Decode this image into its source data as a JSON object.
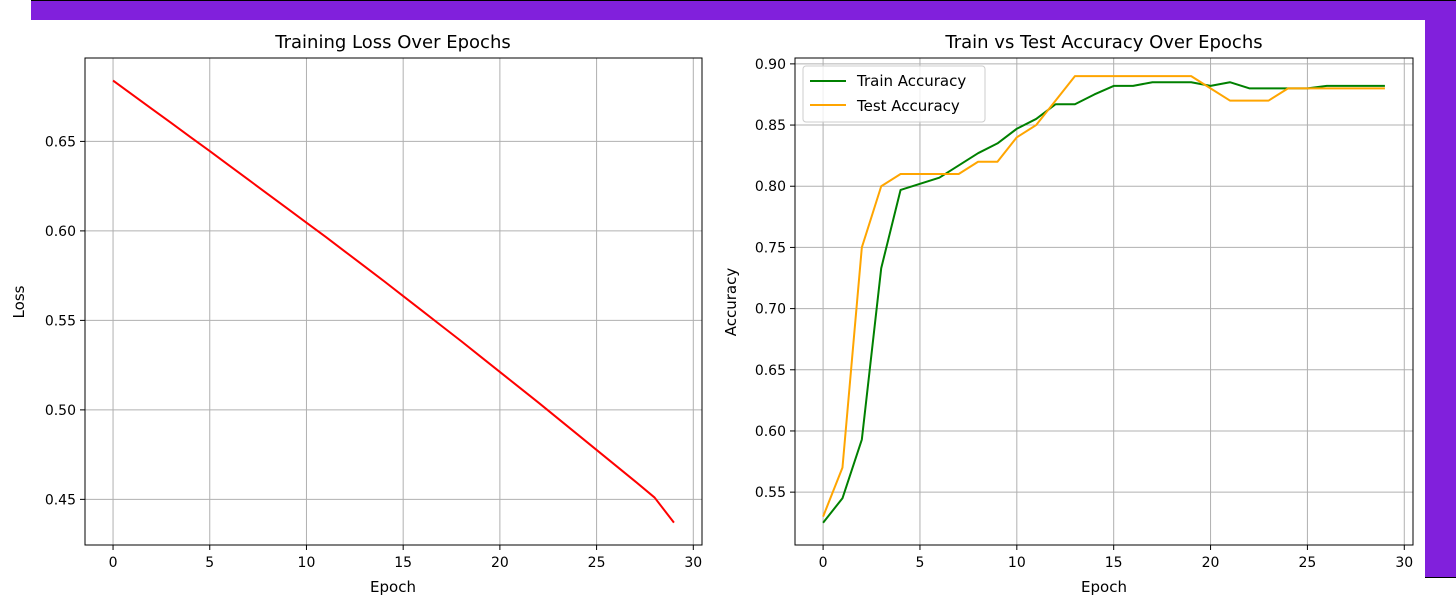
{
  "colors": {
    "frame": "#8120dc",
    "grid": "#b0b0b0",
    "loss": "#ff0000",
    "train": "#008000",
    "test": "#ffa500"
  },
  "chart_data": [
    {
      "type": "line",
      "title": "Training Loss Over Epochs",
      "xlabel": "Epoch",
      "ylabel": "Loss",
      "xlim": [
        -1.45,
        30.45
      ],
      "ylim": [
        0.4245,
        0.6966
      ],
      "xticks": [
        0,
        5,
        10,
        15,
        20,
        25,
        30
      ],
      "yticks": [
        0.45,
        0.5,
        0.55,
        0.6,
        0.65
      ],
      "ytick_labels": [
        "0.45",
        "0.50",
        "0.55",
        "0.60",
        "0.65"
      ],
      "grid": true,
      "legend": null,
      "x": [
        0,
        1,
        2,
        3,
        4,
        5,
        6,
        7,
        8,
        9,
        10,
        11,
        12,
        13,
        14,
        15,
        16,
        17,
        18,
        19,
        20,
        21,
        22,
        23,
        24,
        25,
        26,
        27,
        28,
        29
      ],
      "series": [
        {
          "color": "#ff0000",
          "values": [
            0.684,
            0.6761,
            0.6682,
            0.6604,
            0.6524,
            0.6446,
            0.6366,
            0.6286,
            0.6206,
            0.6126,
            0.6046,
            0.5966,
            0.5884,
            0.5802,
            0.572,
            0.5636,
            0.5552,
            0.5468,
            0.5384,
            0.5298,
            0.5212,
            0.5126,
            0.504,
            0.4952,
            0.4864,
            0.4776,
            0.4688,
            0.46,
            0.451,
            0.437
          ]
        }
      ]
    },
    {
      "type": "line",
      "title": "Train vs Test Accuracy Over Epochs",
      "xlabel": "Epoch",
      "ylabel": "Accuracy",
      "xlim": [
        -1.45,
        30.45
      ],
      "ylim": [
        0.5068,
        0.9048
      ],
      "xticks": [
        0,
        5,
        10,
        15,
        20,
        25,
        30
      ],
      "yticks": [
        0.55,
        0.6,
        0.65,
        0.7,
        0.75,
        0.8,
        0.85,
        0.9
      ],
      "ytick_labels": [
        "0.55",
        "0.60",
        "0.65",
        "0.70",
        "0.75",
        "0.80",
        "0.85",
        "0.90"
      ],
      "grid": true,
      "legend": "upper-left",
      "x": [
        0,
        1,
        2,
        3,
        4,
        5,
        6,
        7,
        8,
        9,
        10,
        11,
        12,
        13,
        14,
        15,
        16,
        17,
        18,
        19,
        20,
        21,
        22,
        23,
        24,
        25,
        26,
        27,
        28,
        29
      ],
      "series": [
        {
          "name": "Train Accuracy",
          "color": "#008000",
          "values": [
            0.525,
            0.545,
            0.593,
            0.733,
            0.797,
            0.802,
            0.807,
            0.817,
            0.827,
            0.835,
            0.847,
            0.855,
            0.867,
            0.867,
            0.875,
            0.882,
            0.882,
            0.885,
            0.885,
            0.885,
            0.882,
            0.885,
            0.88,
            0.88,
            0.88,
            0.88,
            0.882,
            0.882,
            0.882,
            0.882
          ]
        },
        {
          "name": "Test Accuracy",
          "color": "#ffa500",
          "values": [
            0.53,
            0.57,
            0.75,
            0.8,
            0.81,
            0.81,
            0.81,
            0.81,
            0.82,
            0.82,
            0.84,
            0.85,
            0.87,
            0.89,
            0.89,
            0.89,
            0.89,
            0.89,
            0.89,
            0.89,
            0.88,
            0.87,
            0.87,
            0.87,
            0.88,
            0.88,
            0.88,
            0.88,
            0.88,
            0.88
          ]
        }
      ]
    }
  ]
}
